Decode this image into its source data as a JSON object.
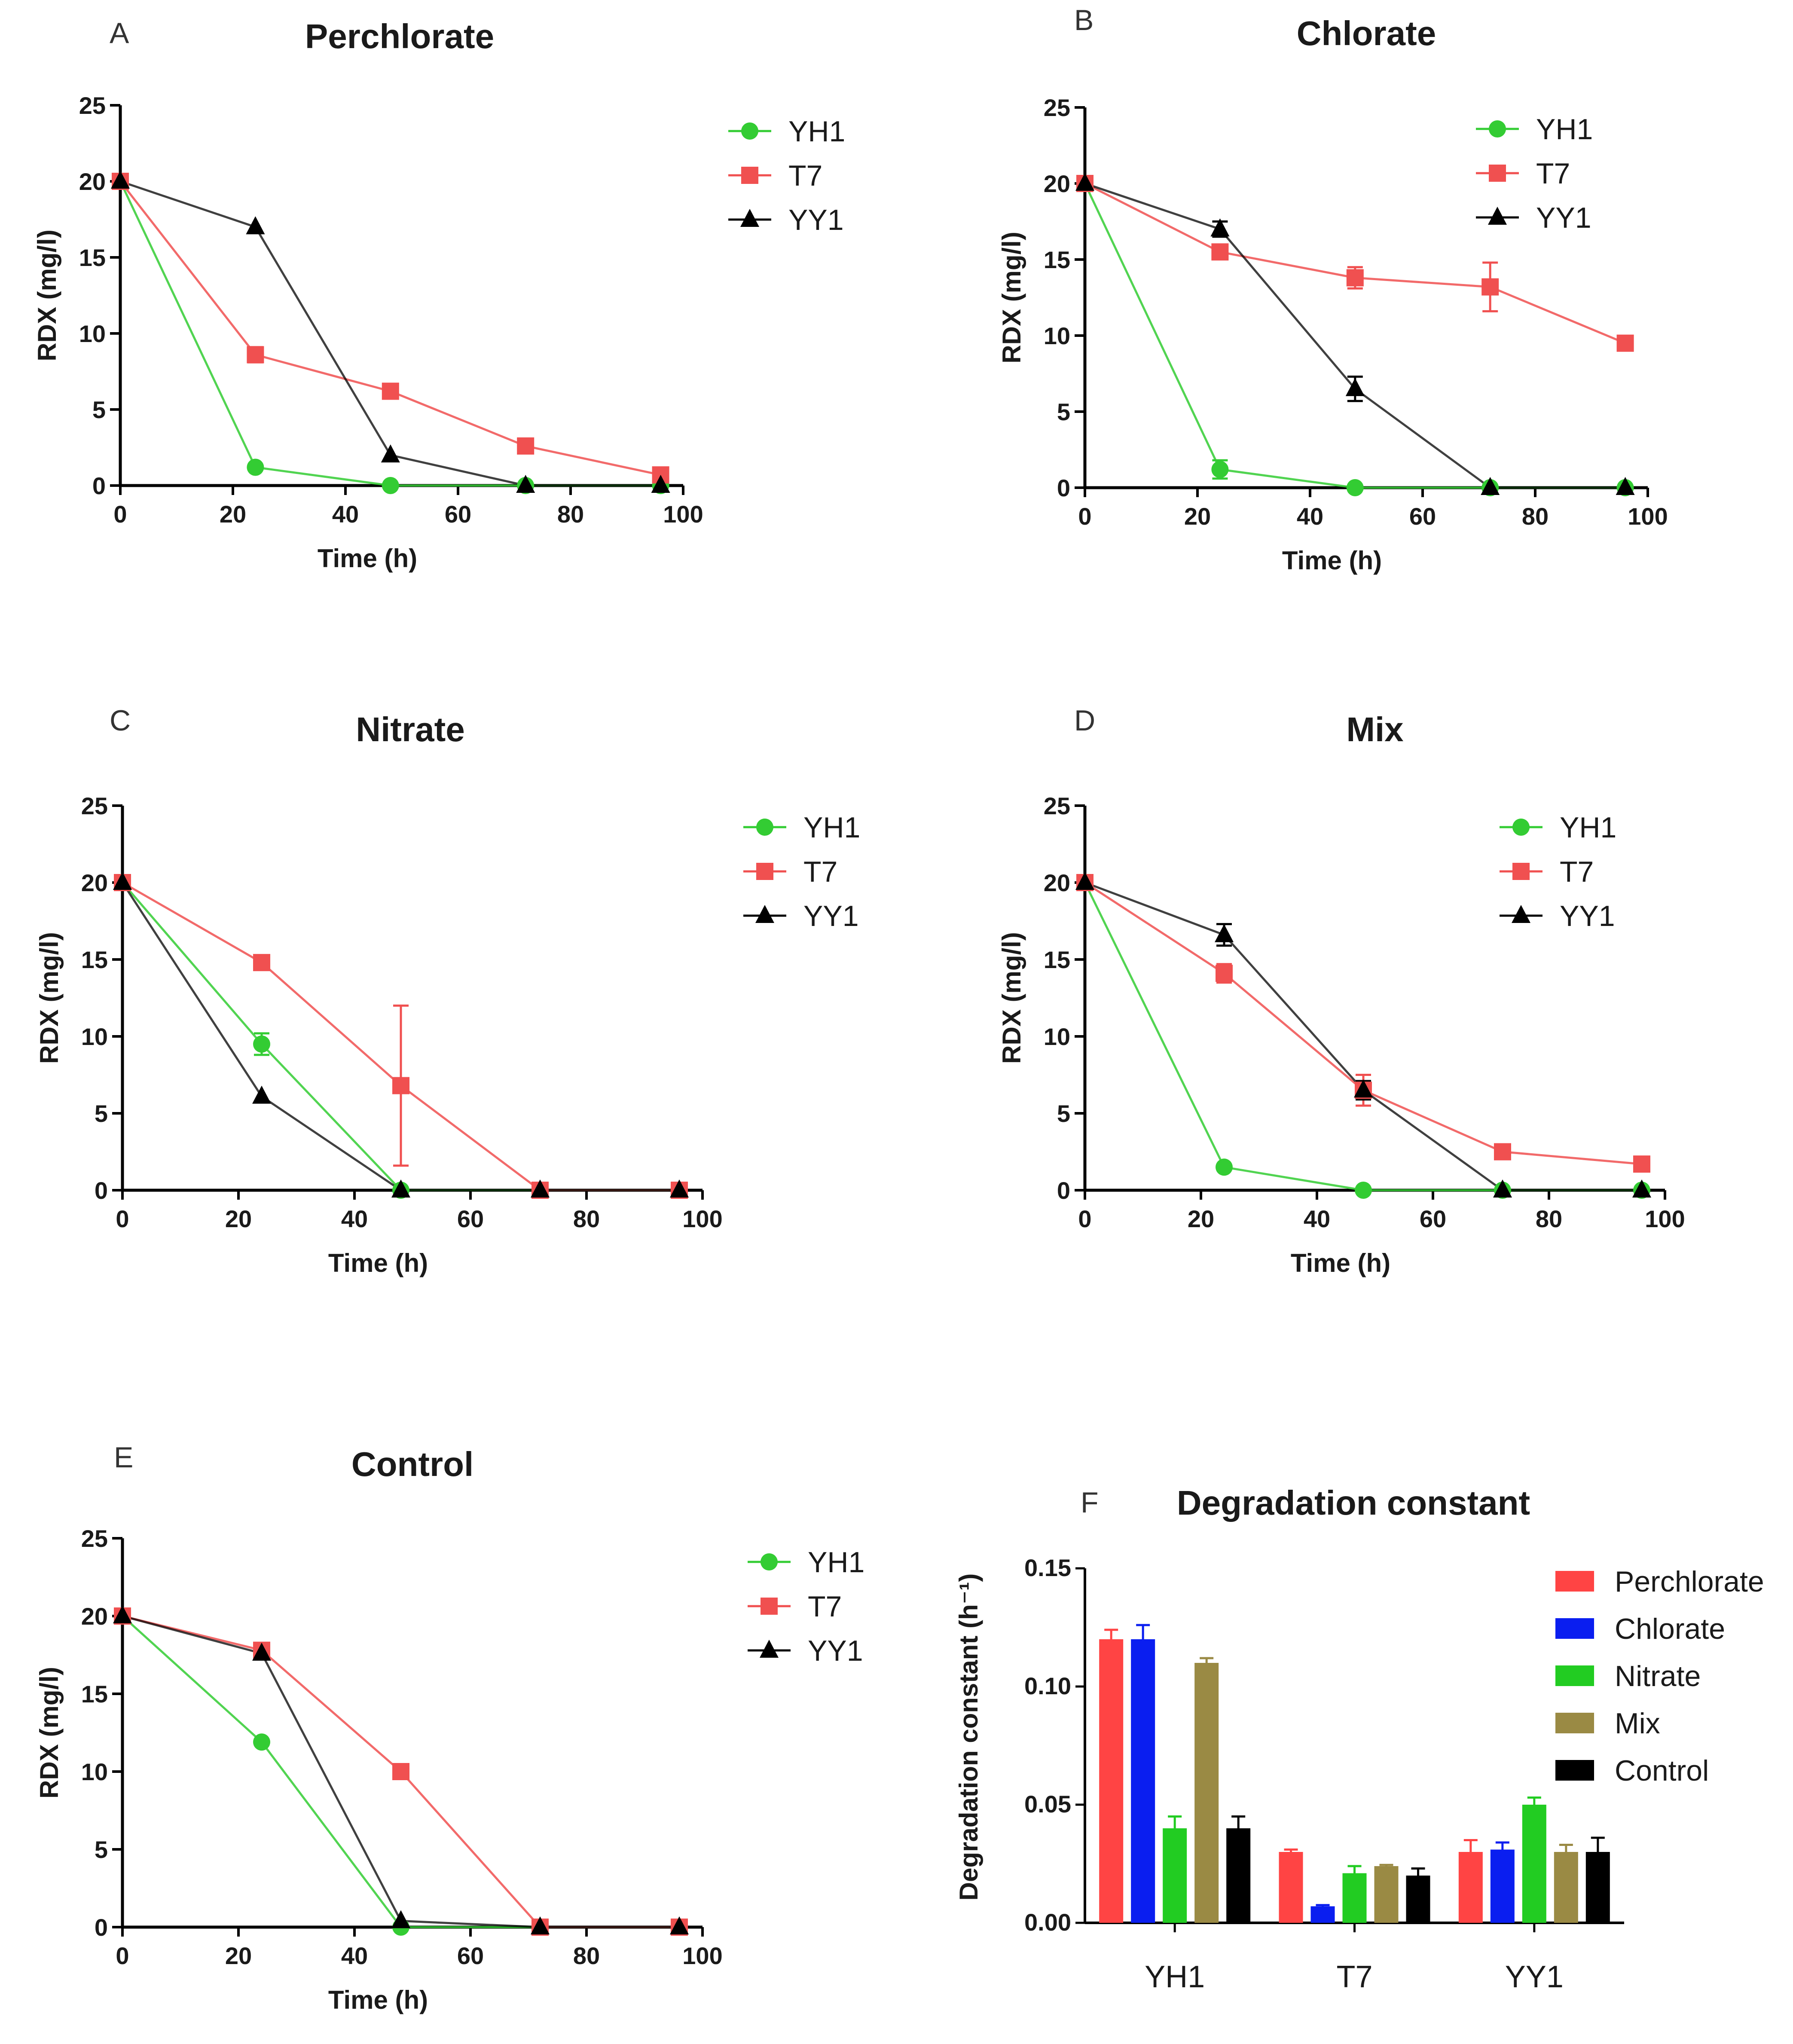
{
  "chart_data": [
    {
      "type": "line",
      "panel_label": "A",
      "title": "Perchlorate",
      "xlabel": "Time (h)",
      "ylabel": "RDX (mg/l)",
      "xlim": [
        0,
        100
      ],
      "ylim": [
        0,
        25
      ],
      "xticks": [
        "0",
        "20",
        "40",
        "60",
        "80",
        "100"
      ],
      "yticks": [
        "0",
        "5",
        "10",
        "15",
        "20",
        "25"
      ],
      "x": [
        0,
        24,
        48,
        72,
        96
      ],
      "series": [
        {
          "name": "YH1",
          "color": "#33cc33",
          "marker": "circle",
          "values": [
            20,
            1.2,
            0,
            0,
            0
          ],
          "errors": [
            0,
            0,
            0,
            0,
            0
          ]
        },
        {
          "name": "T7",
          "color": "#f05050",
          "marker": "square",
          "values": [
            20,
            8.6,
            6.2,
            2.6,
            0.7
          ],
          "errors": [
            0,
            0.5,
            0,
            0,
            0
          ]
        },
        {
          "name": "YY1",
          "color": "#000000",
          "marker": "triangle",
          "values": [
            20,
            17,
            2,
            0,
            0
          ],
          "errors": [
            0,
            0,
            0,
            0,
            0
          ]
        }
      ]
    },
    {
      "type": "line",
      "panel_label": "B",
      "title": "Chlorate",
      "xlabel": "Time (h)",
      "ylabel": "RDX (mg/l)",
      "xlim": [
        0,
        100
      ],
      "ylim": [
        0,
        25
      ],
      "xticks": [
        "0",
        "20",
        "40",
        "60",
        "80",
        "100"
      ],
      "yticks": [
        "0",
        "5",
        "10",
        "15",
        "20",
        "25"
      ],
      "x": [
        0,
        24,
        48,
        72,
        96
      ],
      "series": [
        {
          "name": "YH1",
          "color": "#33cc33",
          "marker": "circle",
          "values": [
            20,
            1.2,
            0,
            0,
            0
          ],
          "errors": [
            0,
            0.6,
            0,
            0,
            0
          ]
        },
        {
          "name": "T7",
          "color": "#f05050",
          "marker": "square",
          "values": [
            20,
            15.5,
            13.8,
            13.2,
            9.5
          ],
          "errors": [
            0,
            0.4,
            0.7,
            1.6,
            0
          ]
        },
        {
          "name": "YY1",
          "color": "#000000",
          "marker": "triangle",
          "values": [
            20,
            17,
            6.5,
            0,
            0
          ],
          "errors": [
            0,
            0.5,
            0.8,
            0,
            0
          ]
        }
      ]
    },
    {
      "type": "line",
      "panel_label": "C",
      "title": "Nitrate",
      "xlabel": "Time (h)",
      "ylabel": "RDX (mg/l)",
      "xlim": [
        0,
        100
      ],
      "ylim": [
        0,
        25
      ],
      "xticks": [
        "0",
        "20",
        "40",
        "60",
        "80",
        "100"
      ],
      "yticks": [
        "0",
        "5",
        "10",
        "15",
        "20",
        "25"
      ],
      "x": [
        0,
        24,
        48,
        72,
        96
      ],
      "series": [
        {
          "name": "YH1",
          "color": "#33cc33",
          "marker": "circle",
          "values": [
            20,
            9.5,
            0,
            0,
            0
          ],
          "errors": [
            0,
            0.7,
            0,
            0,
            0
          ]
        },
        {
          "name": "T7",
          "color": "#f05050",
          "marker": "square",
          "values": [
            20,
            14.8,
            6.8,
            0,
            0
          ],
          "errors": [
            0,
            0,
            5.2,
            0,
            0
          ]
        },
        {
          "name": "YY1",
          "color": "#000000",
          "marker": "triangle",
          "values": [
            20,
            6.1,
            0,
            0,
            0
          ],
          "errors": [
            0,
            0,
            0,
            0,
            0
          ]
        }
      ]
    },
    {
      "type": "line",
      "panel_label": "D",
      "title": "Mix",
      "xlabel": "Time (h)",
      "ylabel": "RDX (mg/l)",
      "xlim": [
        0,
        100
      ],
      "ylim": [
        0,
        25
      ],
      "xticks": [
        "0",
        "20",
        "40",
        "60",
        "80",
        "100"
      ],
      "yticks": [
        "0",
        "5",
        "10",
        "15",
        "20",
        "25"
      ],
      "x": [
        0,
        24,
        48,
        72,
        96
      ],
      "series": [
        {
          "name": "YH1",
          "color": "#33cc33",
          "marker": "circle",
          "values": [
            20,
            1.5,
            0,
            0,
            0
          ],
          "errors": [
            0,
            0,
            0,
            0,
            0
          ]
        },
        {
          "name": "T7",
          "color": "#f05050",
          "marker": "square",
          "values": [
            20,
            14.1,
            6.5,
            2.5,
            1.7
          ],
          "errors": [
            0,
            0.6,
            1.0,
            0,
            0
          ]
        },
        {
          "name": "YY1",
          "color": "#000000",
          "marker": "triangle",
          "values": [
            20,
            16.6,
            6.5,
            0,
            0
          ],
          "errors": [
            0,
            0.7,
            0.6,
            0,
            0
          ]
        }
      ]
    },
    {
      "type": "line",
      "panel_label": "E",
      "title": "Control",
      "xlabel": "Time (h)",
      "ylabel": "RDX (mg/l)",
      "xlim": [
        0,
        100
      ],
      "ylim": [
        0,
        25
      ],
      "xticks": [
        "0",
        "20",
        "40",
        "60",
        "80",
        "100"
      ],
      "yticks": [
        "0",
        "5",
        "10",
        "15",
        "20",
        "25"
      ],
      "x": [
        0,
        24,
        48,
        72,
        96
      ],
      "series": [
        {
          "name": "YH1",
          "color": "#33cc33",
          "marker": "circle",
          "values": [
            20,
            11.9,
            0,
            0,
            0
          ],
          "errors": [
            0,
            0,
            0,
            0,
            0
          ]
        },
        {
          "name": "T7",
          "color": "#f05050",
          "marker": "square",
          "values": [
            20,
            17.8,
            10,
            0,
            0
          ],
          "errors": [
            0,
            0,
            0,
            0,
            0
          ]
        },
        {
          "name": "YY1",
          "color": "#000000",
          "marker": "triangle",
          "values": [
            20,
            17.6,
            0.4,
            0,
            0
          ],
          "errors": [
            0,
            0,
            0,
            0,
            0
          ]
        }
      ]
    },
    {
      "type": "bar",
      "panel_label": "F",
      "title": "Degradation constant",
      "xlabel": "",
      "ylabel": "Degradation constant (h⁻¹)",
      "ylim": [
        0,
        0.15
      ],
      "yticks": [
        "0.00",
        "0.05",
        "0.10",
        "0.15"
      ],
      "categories": [
        "YH1",
        "T7",
        "YY1"
      ],
      "series": [
        {
          "name": "Perchlorate",
          "color": "#ff4444",
          "values": [
            0.12,
            0.03,
            0.03
          ],
          "errors": [
            0.004,
            0.001,
            0.005
          ]
        },
        {
          "name": "Chlorate",
          "color": "#0a1ef0",
          "values": [
            0.12,
            0.007,
            0.031
          ],
          "errors": [
            0.006,
            0.0005,
            0.003
          ]
        },
        {
          "name": "Nitrate",
          "color": "#22cc22",
          "values": [
            0.04,
            0.021,
            0.05
          ],
          "errors": [
            0.005,
            0.003,
            0.003
          ]
        },
        {
          "name": "Mix",
          "color": "#9a8a44",
          "values": [
            0.11,
            0.024,
            0.03
          ],
          "errors": [
            0.002,
            0.0005,
            0.003
          ]
        },
        {
          "name": "Control",
          "color": "#000000",
          "values": [
            0.04,
            0.02,
            0.03
          ],
          "errors": [
            0.005,
            0.003,
            0.006
          ]
        }
      ]
    }
  ]
}
